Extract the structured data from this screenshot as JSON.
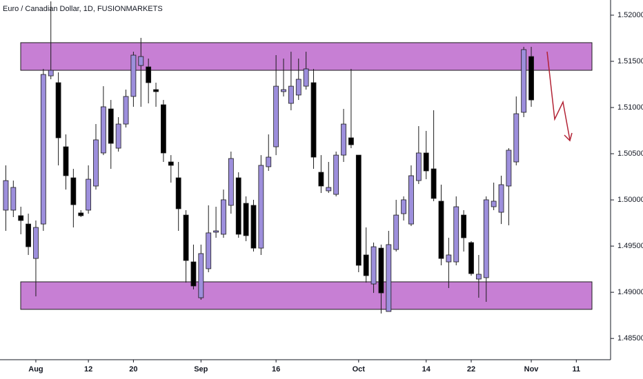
{
  "chart_data": {
    "type": "candlestick",
    "title": "Euro / Canadian Dollar, 1D, FUSIONMARKETS",
    "categories": [
      null,
      null,
      null,
      null,
      "Aug",
      null,
      null,
      null,
      null,
      null,
      null,
      "12",
      null,
      null,
      null,
      null,
      null,
      "20",
      null,
      null,
      null,
      null,
      null,
      null,
      null,
      null,
      "Sep",
      null,
      null,
      null,
      null,
      null,
      null,
      null,
      null,
      null,
      "16",
      null,
      null,
      null,
      null,
      null,
      null,
      null,
      null,
      null,
      null,
      "Oct",
      null,
      null,
      null,
      null,
      null,
      null,
      null,
      null,
      "14",
      null,
      null,
      null,
      null,
      null,
      "22",
      null,
      null,
      null,
      null,
      null,
      null,
      null,
      "Nov",
      null,
      null,
      null,
      null,
      null,
      "11"
    ],
    "open": [
      1.49889,
      1.49889,
      1.49829,
      1.49739,
      1.49366,
      1.49739,
      1.51343,
      1.51269,
      1.50575,
      1.50239,
      1.49859,
      1.49889,
      1.5015,
      1.50508,
      1.50985,
      1.5056,
      1.50821,
      1.5112,
      1.51455,
      1.5144,
      1.51194,
      1.5103,
      1.50411,
      1.50239,
      1.49836,
      1.49329,
      1.48941,
      1.49255,
      1.4965,
      1.49628,
      1.49941,
      1.50239,
      1.49963,
      1.49941,
      1.49478,
      1.50359,
      1.50575,
      1.51172,
      1.51045,
      1.51135,
      1.51231,
      1.51269,
      1.50299,
      1.50098,
      1.5006,
      1.50485,
      1.50672,
      1.50485,
      1.49404,
      1.4909,
      1.49478,
      1.48792,
      1.49463,
      1.49851,
      1.49739,
      1.50209,
      1.50508,
      1.50336,
      1.49986,
      1.49329,
      1.49329,
      1.49836,
      1.49538,
      1.49143,
      1.49158,
      1.49926,
      1.49866,
      1.5015,
      1.50411,
      1.50948,
      1.51552,
      null,
      null,
      null,
      null,
      null,
      null
    ],
    "high": [
      1.50374,
      1.50209,
      1.49926,
      1.49851,
      1.49777,
      1.51418,
      1.52149,
      1.51381,
      1.50709,
      1.50336,
      1.49889,
      1.50374,
      1.50821,
      1.51231,
      1.51082,
      1.50896,
      1.51194,
      1.51604,
      1.51754,
      1.5153,
      1.51269,
      1.51082,
      1.50485,
      1.50411,
      1.49889,
      1.49516,
      1.49516,
      1.49941,
      1.49926,
      1.50112,
      1.50523,
      1.50299,
      1.50038,
      1.50001,
      1.50485,
      1.50709,
      1.51567,
      1.5153,
      1.51604,
      1.5153,
      1.51604,
      1.51418,
      1.50485,
      1.50411,
      1.50523,
      1.50985,
      1.51418,
      1.50485,
      1.49702,
      1.49538,
      1.49516,
      1.49665,
      1.50001,
      1.50038,
      1.50374,
      1.50799,
      1.50747,
      1.5097,
      1.50165,
      1.4959,
      1.50038,
      1.49889,
      1.49553,
      1.49404,
      1.50038,
      1.50187,
      1.50262,
      1.5056,
      1.5112,
      1.51657,
      1.51657,
      null,
      null,
      null,
      null,
      null,
      null
    ],
    "low": [
      1.49665,
      1.49814,
      1.49628,
      1.49404,
      1.48956,
      1.49665,
      1.51306,
      1.50374,
      1.50112,
      1.49702,
      1.49814,
      1.49851,
      1.50112,
      1.50485,
      1.50336,
      1.50523,
      1.50784,
      1.51008,
      1.51008,
      1.51045,
      1.51008,
      1.50411,
      1.50187,
      1.49665,
      1.49105,
      1.49031,
      1.48919,
      1.49217,
      1.4959,
      1.4959,
      1.49851,
      1.4959,
      1.49553,
      1.49441,
      1.49404,
      1.50314,
      1.50485,
      1.5112,
      1.5097,
      1.51082,
      1.51194,
      1.50336,
      1.50075,
      1.50075,
      1.50038,
      1.50411,
      1.5056,
      1.49217,
      1.49105,
      1.48993,
      1.4877,
      1.48792,
      1.49441,
      1.49777,
      1.49717,
      1.50172,
      1.50224,
      1.49986,
      1.49292,
      1.49046,
      1.49292,
      1.49441,
      1.4918,
      1.48941,
      1.48897,
      1.49889,
      1.49739,
      1.49725,
      1.50374,
      1.50896,
      1.51008,
      null,
      null,
      null,
      null,
      null,
      null
    ],
    "close": [
      1.50209,
      1.50135,
      1.49777,
      1.49493,
      1.49702,
      1.51358,
      1.51403,
      1.50672,
      1.50262,
      1.49948,
      1.49829,
      1.50224,
      1.5065,
      1.51008,
      1.50612,
      1.50821,
      1.5112,
      1.51567,
      1.51552,
      1.51269,
      1.51172,
      1.50508,
      1.50374,
      1.49904,
      1.49344,
      1.49068,
      1.49419,
      1.49643,
      1.49665,
      1.50001,
      1.50448,
      1.49628,
      1.49613,
      1.49478,
      1.50374,
      1.50463,
      1.51231,
      1.51194,
      1.51231,
      1.51306,
      1.51418,
      1.50463,
      1.5015,
      1.50135,
      1.50485,
      1.50821,
      1.50597,
      1.49292,
      1.4918,
      1.49493,
      1.48993,
      1.49516,
      1.49836,
      1.50001,
      1.50262,
      1.50508,
      1.50314,
      1.50016,
      1.49366,
      1.49404,
      1.49926,
      1.4959,
      1.49202,
      1.49195,
      1.50001,
      1.49986,
      1.50165,
      1.50538,
      1.50933,
      1.51627,
      1.51082,
      null,
      null,
      null,
      null,
      null,
      null
    ],
    "up_color": "#9d8fdc",
    "down_color": "#000000",
    "zones": [
      {
        "from": 1.51403,
        "to": 1.51702
      },
      {
        "from": 1.48815,
        "to": 1.49113
      }
    ],
    "zone_color": "#c77fd4",
    "ylim": [
      1.4827,
      1.52164
    ],
    "yticks": [
      {
        "value": 1.485,
        "label": "1.48500"
      },
      {
        "value": 1.49,
        "label": "1.49000"
      },
      {
        "value": 1.495,
        "label": "1.49500"
      },
      {
        "value": 1.5,
        "label": "1.50000"
      },
      {
        "value": 1.505,
        "label": "1.50500"
      },
      {
        "value": 1.51,
        "label": "1.51000"
      },
      {
        "value": 1.515,
        "label": "1.51500"
      },
      {
        "value": 1.52,
        "label": "1.52000"
      }
    ]
  }
}
